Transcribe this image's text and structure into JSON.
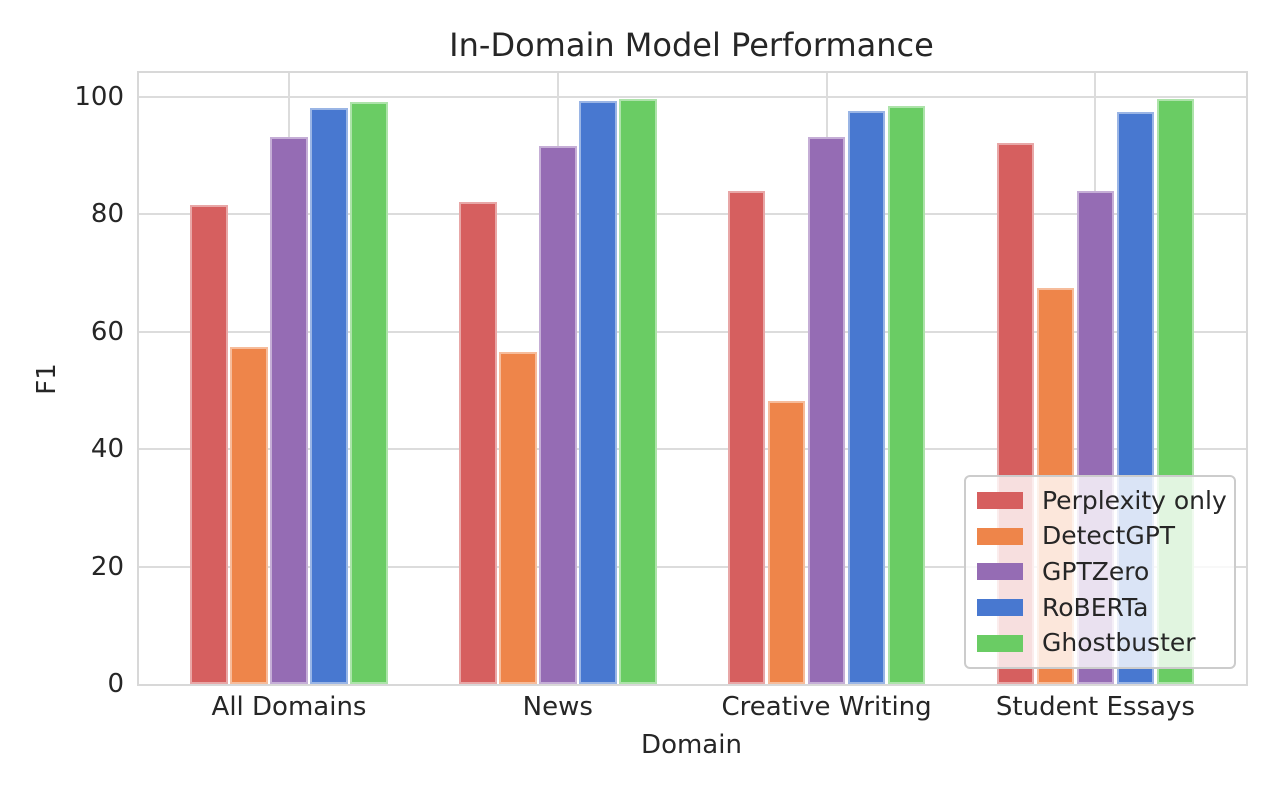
{
  "chart_data": {
    "type": "bar",
    "title": "In-Domain Model Performance",
    "xlabel": "Domain",
    "ylabel": "F1",
    "categories": [
      "All Domains",
      "News",
      "Creative Writing",
      "Student Essays"
    ],
    "series": [
      {
        "name": "Perplexity only",
        "color": "#d65f5f",
        "values": [
          81.5,
          82.1,
          84.0,
          92.1
        ]
      },
      {
        "name": "DetectGPT",
        "color": "#ee854a",
        "values": [
          57.4,
          56.5,
          48.2,
          67.4
        ]
      },
      {
        "name": "GPTZero",
        "color": "#956cb4",
        "values": [
          93.1,
          91.5,
          93.1,
          83.9
        ]
      },
      {
        "name": "RoBERTa",
        "color": "#4878d0",
        "values": [
          98.1,
          99.2,
          97.5,
          97.4
        ]
      },
      {
        "name": "Ghostbuster",
        "color": "#6acc64",
        "values": [
          99.0,
          99.5,
          98.4,
          99.5
        ]
      }
    ],
    "yticks": [
      0,
      20,
      40,
      60,
      80,
      100
    ],
    "ylim": [
      0,
      104
    ],
    "grid": true,
    "legend_position": "lower right",
    "text_color": "#262626"
  }
}
